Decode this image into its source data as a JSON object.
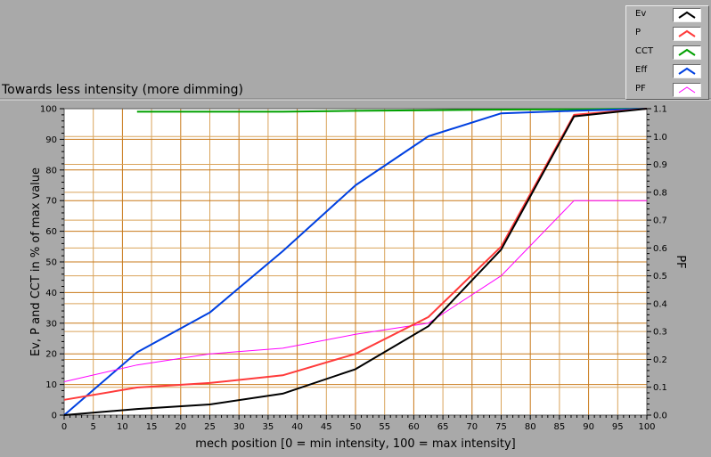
{
  "caption": "Towards less intensity (more dimming)",
  "legend": [
    {
      "name": "Ev",
      "color": "#000000"
    },
    {
      "name": "P",
      "color": "#ff3b3b"
    },
    {
      "name": "CCT",
      "color": "#00a000"
    },
    {
      "name": "Eff",
      "color": "#0040e0"
    },
    {
      "name": "PF",
      "color": "#ff00ff"
    }
  ],
  "chart_data": {
    "type": "line",
    "xlabel": "mech position [0 = min intensity, 100 = max intensity]",
    "ylabel": "Ev, P and CCT in % of max value",
    "y2label": "PF",
    "xlim": [
      0,
      100
    ],
    "ylim": [
      0,
      100
    ],
    "y2lim": [
      0,
      1.1
    ],
    "x_ticks": [
      "0",
      "5",
      "10",
      "15",
      "20",
      "25",
      "30",
      "35",
      "40",
      "45",
      "50",
      "55",
      "60",
      "65",
      "70",
      "75",
      "80",
      "85",
      "90",
      "95",
      "100"
    ],
    "y_ticks": [
      "0",
      "10",
      "20",
      "30",
      "40",
      "50",
      "60",
      "70",
      "80",
      "90",
      "100"
    ],
    "y2_ticks": [
      "0.0",
      "0.1",
      "0.2",
      "0.3",
      "0.4",
      "0.5",
      "0.6",
      "0.7",
      "0.8",
      "0.9",
      "1.0",
      "1.1"
    ],
    "grid": true,
    "series": [
      {
        "name": "Ev",
        "axis": "left",
        "color": "#000000",
        "x": [
          0,
          12.5,
          25,
          37.5,
          50,
          62.5,
          75,
          87.5,
          100
        ],
        "y": [
          0,
          2,
          3.5,
          7,
          15,
          29,
          54,
          97.5,
          100
        ]
      },
      {
        "name": "P",
        "axis": "left",
        "color": "#ff3b3b",
        "x": [
          0,
          12.5,
          25,
          37.5,
          50,
          62.5,
          75,
          87.5,
          100
        ],
        "y": [
          5,
          9,
          10.5,
          13,
          20,
          32,
          55,
          98,
          100
        ]
      },
      {
        "name": "CCT",
        "axis": "left",
        "color": "#00a000",
        "x": [
          12.5,
          25,
          37.5,
          50,
          62.5,
          75,
          87.5,
          100
        ],
        "y": [
          99,
          99,
          99,
          99.3,
          99.5,
          99.7,
          99.8,
          100
        ]
      },
      {
        "name": "Eff",
        "axis": "left",
        "color": "#0040e0",
        "x": [
          0,
          12.5,
          25,
          37.5,
          50,
          62.5,
          75,
          87.5,
          100
        ],
        "y": [
          0,
          20.5,
          33.5,
          53.5,
          75,
          91,
          98.5,
          99.3,
          100
        ]
      },
      {
        "name": "PF",
        "axis": "right",
        "color": "#ff00ff",
        "x": [
          0,
          12.5,
          25,
          37.5,
          50,
          62.5,
          75,
          87.5,
          100
        ],
        "y": [
          0.12,
          0.18,
          0.22,
          0.24,
          0.29,
          0.33,
          0.5,
          0.77,
          0.77
        ]
      }
    ]
  }
}
